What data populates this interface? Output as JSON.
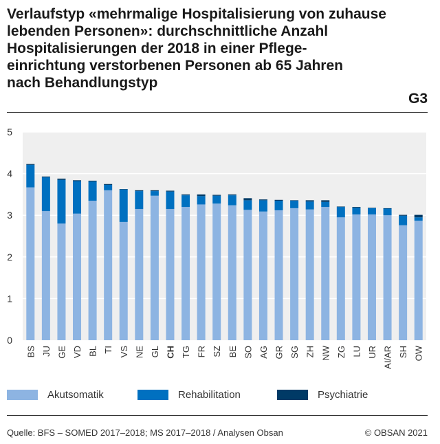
{
  "title_lines": [
    "Verlaufstyp «mehrmalige Hospitalisierung von zuhause",
    "lebenden Personen»: durchschnittliche Anzahl",
    "Hospitalisierungen der 2018 in einer Pflege-",
    "einrichtung verstorbenen Personen ab 65 Jahren",
    "nach Behandlungstyp"
  ],
  "figure_id": "G3",
  "footer": {
    "source": "Quelle: BFS – SOMED 2017–2018; MS 2017–2018 / Analysen Obsan",
    "copyright": "© OBSAN 2021"
  },
  "colors": {
    "akut": "#8db4e2",
    "reha": "#0070c0",
    "psych": "#003a66",
    "plot_bg": "#efefef",
    "grid": "#ffffff"
  },
  "chart_data": {
    "type": "bar",
    "stacked": true,
    "title": "Verlaufstyp «mehrmalige Hospitalisierung von zuhause lebenden Personen»: durchschnittliche Anzahl Hospitalisierungen der 2018 in einer Pflegeeinrichtung verstorbenen Personen ab 65 Jahren nach Behandlungstyp",
    "xlabel": "",
    "ylabel": "",
    "ylim": [
      0,
      5
    ],
    "yticks": [
      0,
      1,
      2,
      3,
      4,
      5
    ],
    "grid": true,
    "highlight_category": "CH",
    "categories": [
      "BS",
      "JU",
      "GE",
      "VD",
      "BL",
      "TI",
      "VS",
      "NE",
      "GL",
      "CH",
      "TG",
      "FR",
      "SZ",
      "BE",
      "SO",
      "AG",
      "GR",
      "SG",
      "ZH",
      "NW",
      "ZG",
      "LU",
      "UR",
      "AI/AR",
      "SH",
      "OW"
    ],
    "series": [
      {
        "name": "Akutsomatik",
        "color_key": "akut",
        "values": [
          3.67,
          3.1,
          2.8,
          3.04,
          3.35,
          3.6,
          2.84,
          3.15,
          3.47,
          3.15,
          3.2,
          3.26,
          3.28,
          3.24,
          3.13,
          3.09,
          3.12,
          3.17,
          3.14,
          3.2,
          2.95,
          3.02,
          3.02,
          3.0,
          2.76,
          2.87
        ]
      },
      {
        "name": "Rehabilitation",
        "color_key": "reha",
        "values": [
          0.54,
          0.81,
          1.05,
          0.78,
          0.46,
          0.13,
          0.78,
          0.43,
          0.11,
          0.42,
          0.28,
          0.2,
          0.19,
          0.24,
          0.23,
          0.27,
          0.23,
          0.18,
          0.19,
          0.12,
          0.25,
          0.16,
          0.15,
          0.16,
          0.23,
          0.08
        ]
      },
      {
        "name": "Psychiatrie",
        "color_key": "psych",
        "values": [
          0.02,
          0.02,
          0.03,
          0.02,
          0.02,
          0.02,
          0.01,
          0.02,
          0.02,
          0.02,
          0.02,
          0.04,
          0.02,
          0.02,
          0.05,
          0.02,
          0.02,
          0.01,
          0.03,
          0.04,
          0.01,
          0.02,
          0.01,
          0.01,
          0.02,
          0.06
        ]
      }
    ]
  }
}
